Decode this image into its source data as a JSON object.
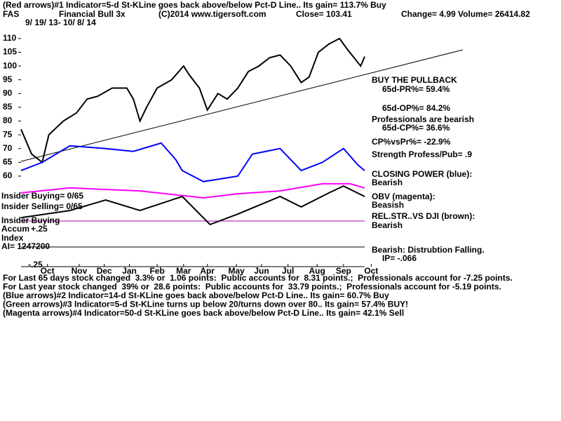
{
  "chart_data": {
    "type": "line",
    "header_lines": [
      "(Red arrows)#1 Indicator=5-d St-KLine goes back above/below Pct-D Line.. Its gain= 113.7% Buy"
    ],
    "title": "FAS",
    "subtitle": "Financial Bull 3x",
    "copyright": "(C)2014 www.tigersoft.com",
    "close": "Close= 103.41",
    "change": "Change= 4.99 Volume= 26414.82",
    "date_range": "9/ 19/ 13- 10/ 8/ 14",
    "side_notes": [
      "BUY THE PULLBACK",
      "65d-PR%= 59.4%",
      "65d-OP%= 84.2%",
      "Professionals are bearish",
      "65d-CP%= 36.6%",
      "CP%vsPr%= -22.9%",
      "Strength Profess/Pub= .9",
      "CLOSING POWER (blue):",
      "Bearish",
      "OBV (magenta):",
      "Beasish",
      "REL.STR..VS DJI (brown):",
      "Bearish",
      "Bearish: Distrubtion Falling.",
      "IP= -.066"
    ],
    "left_notes": [
      "Insider Buying= 0/65",
      "Insider Selling= 0/65",
      "Insider Buying",
      "Accum",
      "+.25",
      "Index",
      "AI= 1247200",
      "-.25"
    ],
    "footer_lines": [
      "For Last 65 days stock changed  3.3% or  1.06 points:  Public accounts for  8.31 points.;  Professionals account for -7.25 points.",
      "For Last year stock changed  39% or  28.6 points:  Public accounts for  33.79 points.;  Professionals account for -5.19 points.",
      "(Blue arrows)#2 Indicator=14-d St-KLine goes back above/below Pct-D Line.. Its gain= 60.7% Buy",
      "(Green arrows)#3 Indicator=5-d St-KLine turns up below 20/turns down over 80.. Its gain= 57.4% BUY!",
      "(Magenta arrows)#4 Indicator=50-d St-KLine goes back above/below Pct-D Line.. Its gain= 42.1% Sell"
    ],
    "xlim": [
      0,
      260
    ],
    "xticks": [
      {
        "value": 20,
        "label": "Oct"
      },
      {
        "value": 44,
        "label": "Nov"
      },
      {
        "value": 63,
        "label": "Dec"
      },
      {
        "value": 82,
        "label": "Jan"
      },
      {
        "value": 103,
        "label": "Feb"
      },
      {
        "value": 123,
        "label": "Mar"
      },
      {
        "value": 141,
        "label": "Apr"
      },
      {
        "value": 163,
        "label": "May"
      },
      {
        "value": 182,
        "label": "Jun"
      },
      {
        "value": 202,
        "label": "Jul"
      },
      {
        "value": 224,
        "label": "Aug"
      },
      {
        "value": 244,
        "label": "Sep"
      },
      {
        "value": 265,
        "label": "Oct"
      }
    ],
    "ylim": [
      27.1,
      119.4
    ],
    "yticks": [
      60,
      65,
      70,
      75,
      80,
      85,
      90,
      95,
      100,
      105,
      110
    ],
    "series": [
      {
        "color": "#000000",
        "x": [
          0,
          8,
          16,
          21,
          32,
          42,
          50,
          58,
          69,
          80,
          85,
          90,
          95,
          103,
          114,
          123,
          127,
          135,
          141,
          149,
          156,
          164,
          172,
          180,
          188,
          196,
          204,
          212,
          218,
          225,
          233,
          241,
          247,
          252,
          257,
          260
        ],
        "values": [
          77,
          68,
          65,
          75,
          80,
          83,
          88,
          89,
          92,
          92,
          88,
          80,
          85,
          92,
          95,
          100,
          97,
          92,
          84,
          90,
          88,
          92,
          98,
          100,
          103,
          104,
          100,
          94,
          96,
          105,
          108,
          110,
          106,
          103,
          100,
          103.41
        ]
      },
      {
        "color": "#0000ff",
        "x": [
          0,
          16,
          37,
          64,
          85,
          106,
          117,
          122,
          138,
          164,
          175,
          196,
          212,
          228,
          244,
          255,
          260
        ],
        "values": [
          62,
          65,
          71,
          70,
          69,
          72,
          66,
          62,
          58,
          60,
          68,
          70,
          62,
          65,
          70,
          64,
          62
        ]
      },
      {
        "color": "#ff00ff",
        "x": [
          0,
          37,
          90,
          138,
          164,
          196,
          228,
          249,
          260
        ],
        "values": [
          53.9,
          55.7,
          54.6,
          52.1,
          53.6,
          54.6,
          57.2,
          57.2,
          55.7
        ]
      },
      {
        "color": "#000000",
        "x": [
          0,
          37,
          64,
          90,
          122,
          143,
          164,
          196,
          212,
          233,
          244,
          260
        ],
        "values": [
          44.9,
          47.5,
          51.3,
          47.5,
          52.6,
          42.4,
          46.2,
          52.6,
          48.8,
          53.9,
          56.4,
          52.6
        ]
      }
    ]
  }
}
